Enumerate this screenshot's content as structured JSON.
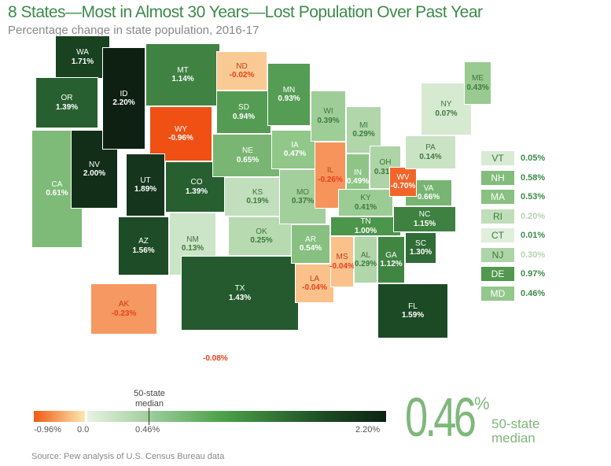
{
  "title": "8 States—Most in Almost 30 Years—Lost Population Over Past Year",
  "subtitle": "Percentage change in state population, 2016-17",
  "states": [
    {
      "abbr": "WA",
      "value": 1.71
    },
    {
      "abbr": "OR",
      "value": 1.39
    },
    {
      "abbr": "CA",
      "value": 0.61
    },
    {
      "abbr": "NV",
      "value": 2.0
    },
    {
      "abbr": "ID",
      "value": 2.2
    },
    {
      "abbr": "MT",
      "value": 1.14
    },
    {
      "abbr": "WY",
      "value": -0.96
    },
    {
      "abbr": "UT",
      "value": 1.89
    },
    {
      "abbr": "CO",
      "value": 1.39
    },
    {
      "abbr": "AZ",
      "value": 1.56
    },
    {
      "abbr": "NM",
      "value": 0.13
    },
    {
      "abbr": "ND",
      "value": -0.02
    },
    {
      "abbr": "SD",
      "value": 0.94
    },
    {
      "abbr": "NE",
      "value": 0.65
    },
    {
      "abbr": "KS",
      "value": 0.19
    },
    {
      "abbr": "OK",
      "value": 0.25
    },
    {
      "abbr": "TX",
      "value": 1.43
    },
    {
      "abbr": "MN",
      "value": 0.93
    },
    {
      "abbr": "IA",
      "value": 0.47
    },
    {
      "abbr": "MO",
      "value": 0.37
    },
    {
      "abbr": "AR",
      "value": 0.54
    },
    {
      "abbr": "LA",
      "value": -0.04
    },
    {
      "abbr": "WI",
      "value": 0.39
    },
    {
      "abbr": "IL",
      "value": -0.26
    },
    {
      "abbr": "MI",
      "value": 0.29
    },
    {
      "abbr": "IN",
      "value": 0.49
    },
    {
      "abbr": "OH",
      "value": 0.31
    },
    {
      "abbr": "KY",
      "value": 0.41
    },
    {
      "abbr": "TN",
      "value": 1.0
    },
    {
      "abbr": "MS",
      "value": -0.04
    },
    {
      "abbr": "AL",
      "value": 0.29
    },
    {
      "abbr": "GA",
      "value": 1.12
    },
    {
      "abbr": "FL",
      "value": 1.59
    },
    {
      "abbr": "SC",
      "value": 1.3
    },
    {
      "abbr": "NC",
      "value": 1.15
    },
    {
      "abbr": "VA",
      "value": 0.66
    },
    {
      "abbr": "WV",
      "value": -0.7
    },
    {
      "abbr": "PA",
      "value": 0.14
    },
    {
      "abbr": "NY",
      "value": 0.07
    },
    {
      "abbr": "ME",
      "value": 0.43
    },
    {
      "abbr": "AK",
      "value": -0.23
    }
  ],
  "hawaii_value": "-0.08%",
  "small_states": [
    {
      "abbr": "VT",
      "value": 0.05,
      "label": "0.05%"
    },
    {
      "abbr": "NH",
      "value": 0.58,
      "label": "0.58%"
    },
    {
      "abbr": "MA",
      "value": 0.53,
      "label": "0.53%"
    },
    {
      "abbr": "RI",
      "value": 0.2,
      "label": "0.20%"
    },
    {
      "abbr": "CT",
      "value": 0.01,
      "label": "0.01%"
    },
    {
      "abbr": "NJ",
      "value": 0.3,
      "label": "0.30%"
    },
    {
      "abbr": "DE",
      "value": 0.97,
      "label": "0.97%"
    },
    {
      "abbr": "MD",
      "value": 0.46,
      "label": "0.46%"
    }
  ],
  "scale": {
    "min_label": "-0.96%",
    "zero_label": "0.0",
    "median_label": "0.46%",
    "max_label": "2.20%",
    "median_caption": "50-state median",
    "min": -0.96,
    "max": 2.2,
    "median": 0.46
  },
  "median_big": {
    "value": "0.46",
    "pct": "%",
    "label": "50-state median"
  },
  "source": "Source: Pew analysis of U.S. Census Bureau data"
}
